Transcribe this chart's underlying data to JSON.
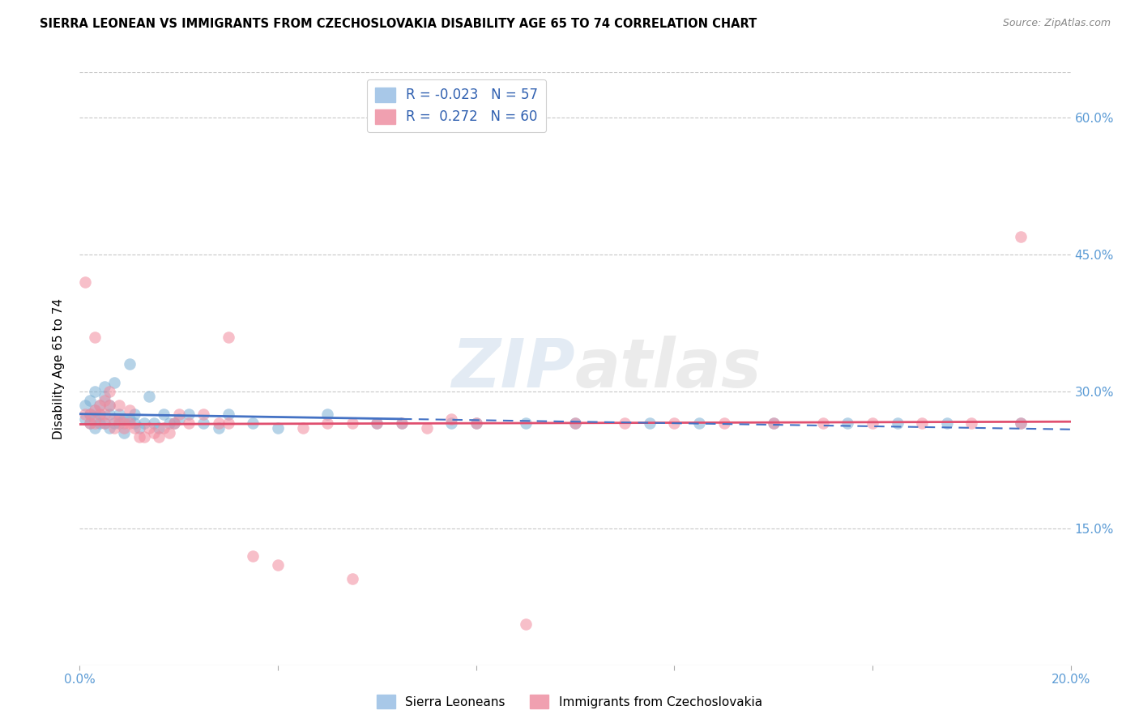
{
  "title": "SIERRA LEONEAN VS IMMIGRANTS FROM CZECHOSLOVAKIA DISABILITY AGE 65 TO 74 CORRELATION CHART",
  "source": "Source: ZipAtlas.com",
  "ylabel": "Disability Age 65 to 74",
  "x_min": 0.0,
  "x_max": 0.2,
  "y_min": 0.0,
  "y_max": 0.65,
  "x_ticks": [
    0.0,
    0.04,
    0.08,
    0.12,
    0.16,
    0.2
  ],
  "x_tick_labels": [
    "0.0%",
    "",
    "",
    "",
    "",
    "20.0%"
  ],
  "y_ticks": [
    0.0,
    0.15,
    0.3,
    0.45,
    0.6
  ],
  "y_tick_labels_right": [
    "",
    "15.0%",
    "30.0%",
    "45.0%",
    "60.0%"
  ],
  "series1_color": "#7bafd4",
  "series2_color": "#f28b9e",
  "series1_line_color": "#4472C4",
  "series2_line_color": "#E05070",
  "R1": -0.023,
  "N1": 57,
  "R2": 0.272,
  "N2": 60,
  "watermark": "ZIPatlas",
  "legend_label1": "Sierra Leoneans",
  "legend_label2": "Immigrants from Czechoslovakia",
  "s1x": [
    0.001,
    0.001,
    0.002,
    0.002,
    0.002,
    0.003,
    0.003,
    0.003,
    0.003,
    0.004,
    0.004,
    0.004,
    0.005,
    0.005,
    0.005,
    0.006,
    0.006,
    0.006,
    0.007,
    0.007,
    0.008,
    0.008,
    0.009,
    0.009,
    0.01,
    0.01,
    0.011,
    0.011,
    0.012,
    0.013,
    0.014,
    0.015,
    0.016,
    0.017,
    0.018,
    0.019,
    0.02,
    0.022,
    0.025,
    0.028,
    0.03,
    0.035,
    0.04,
    0.05,
    0.06,
    0.065,
    0.075,
    0.08,
    0.09,
    0.1,
    0.115,
    0.125,
    0.14,
    0.155,
    0.165,
    0.175,
    0.19
  ],
  "s1y": [
    0.27,
    0.285,
    0.265,
    0.275,
    0.29,
    0.26,
    0.27,
    0.28,
    0.3,
    0.265,
    0.275,
    0.285,
    0.295,
    0.305,
    0.265,
    0.275,
    0.285,
    0.26,
    0.31,
    0.265,
    0.265,
    0.275,
    0.255,
    0.27,
    0.33,
    0.27,
    0.265,
    0.275,
    0.26,
    0.265,
    0.295,
    0.265,
    0.26,
    0.275,
    0.265,
    0.265,
    0.27,
    0.275,
    0.265,
    0.26,
    0.275,
    0.265,
    0.26,
    0.275,
    0.265,
    0.265,
    0.265,
    0.265,
    0.265,
    0.265,
    0.265,
    0.265,
    0.265,
    0.265,
    0.265,
    0.265,
    0.265
  ],
  "s2x": [
    0.001,
    0.001,
    0.002,
    0.002,
    0.003,
    0.003,
    0.003,
    0.004,
    0.004,
    0.005,
    0.005,
    0.005,
    0.006,
    0.006,
    0.007,
    0.007,
    0.008,
    0.008,
    0.009,
    0.009,
    0.01,
    0.01,
    0.011,
    0.012,
    0.013,
    0.014,
    0.015,
    0.016,
    0.017,
    0.018,
    0.019,
    0.02,
    0.022,
    0.025,
    0.028,
    0.03,
    0.035,
    0.04,
    0.045,
    0.05,
    0.055,
    0.06,
    0.065,
    0.07,
    0.075,
    0.08,
    0.09,
    0.1,
    0.11,
    0.12,
    0.13,
    0.14,
    0.15,
    0.16,
    0.17,
    0.18,
    0.19,
    0.03,
    0.055,
    0.19
  ],
  "s2y": [
    0.275,
    0.42,
    0.265,
    0.275,
    0.36,
    0.28,
    0.265,
    0.285,
    0.275,
    0.29,
    0.275,
    0.265,
    0.3,
    0.285,
    0.27,
    0.26,
    0.285,
    0.27,
    0.265,
    0.26,
    0.28,
    0.265,
    0.26,
    0.25,
    0.25,
    0.26,
    0.255,
    0.25,
    0.26,
    0.255,
    0.265,
    0.275,
    0.265,
    0.275,
    0.265,
    0.265,
    0.12,
    0.11,
    0.26,
    0.265,
    0.095,
    0.265,
    0.265,
    0.26,
    0.27,
    0.265,
    0.045,
    0.265,
    0.265,
    0.265,
    0.265,
    0.265,
    0.265,
    0.265,
    0.265,
    0.265,
    0.265,
    0.36,
    0.265,
    0.47
  ]
}
